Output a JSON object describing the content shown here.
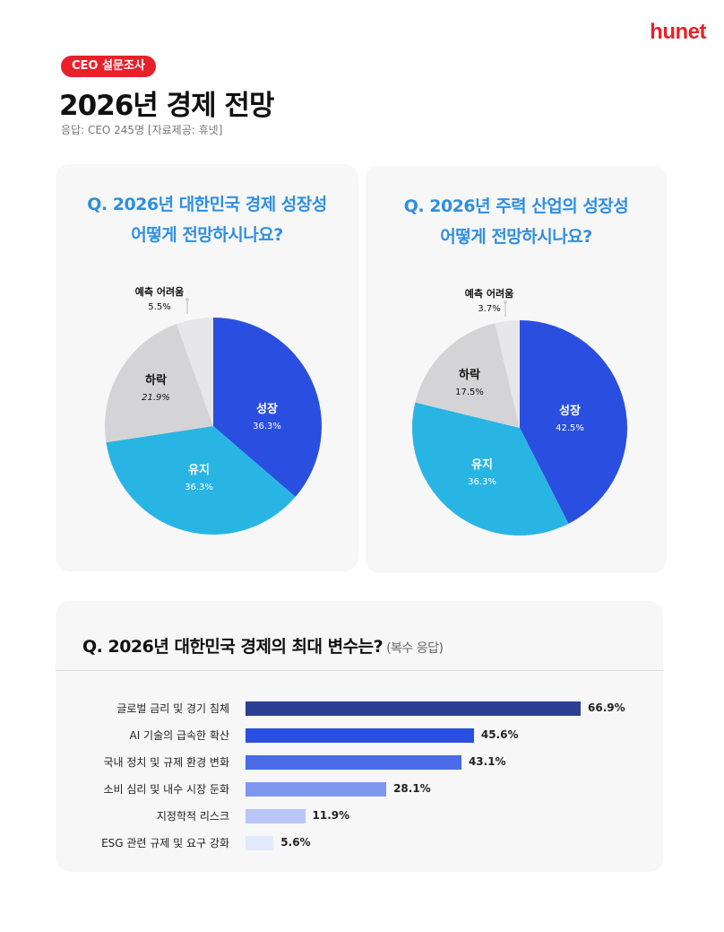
{
  "brand": "hunet",
  "badge": "CEO 설문조사",
  "title": "2026년 경제 전망",
  "meta": "응답: CEO 245명 [자료제공: 휴넷]",
  "colors": {
    "accent_red": "#e8202a",
    "question_blue": "#2f8fe0",
    "growth": "#2a4fe0",
    "maintain": "#29b5e3",
    "decline": "#d4d4d6",
    "unpredictable": "#e7e7e9"
  },
  "chart_data": [
    {
      "type": "pie",
      "title_lines": [
        "Q. 2026년 대한민국 경제 성장성",
        "어떻게 전망하시나요?"
      ],
      "slices": [
        {
          "name": "성장",
          "value": 36.3,
          "label": "36.3%",
          "color": "#2a4fe0"
        },
        {
          "name": "유지",
          "value": 36.3,
          "label": "36.3%",
          "color": "#29b5e3"
        },
        {
          "name": "하락",
          "value": 21.9,
          "label": "21.9%",
          "color": "#d4d4d6"
        },
        {
          "name": "예측 어려움",
          "value": 5.5,
          "label": "5.5%",
          "color": "#e7e7e9"
        }
      ]
    },
    {
      "type": "pie",
      "title_lines": [
        "Q. 2026년 주력 산업의 성장성",
        "어떻게 전망하시나요?"
      ],
      "slices": [
        {
          "name": "성장",
          "value": 42.5,
          "label": "42.5%",
          "color": "#2a4fe0"
        },
        {
          "name": "유지",
          "value": 36.3,
          "label": "36.3%",
          "color": "#29b5e3"
        },
        {
          "name": "하락",
          "value": 17.5,
          "label": "17.5%",
          "color": "#d4d4d6"
        },
        {
          "name": "예측 어려움",
          "value": 3.7,
          "label": "3.7%",
          "color": "#e7e7e9"
        }
      ]
    },
    {
      "type": "bar",
      "orientation": "horizontal",
      "title": "Q. 2026년 대한민국 경제의 최대 변수는?",
      "note": "(복수 응답)",
      "categories": [
        "글로벌 금리 및 경기 침체",
        "AI 기술의 급속한 확산",
        "국내 정치 및 규제 환경 변화",
        "소비 심리 및 내수 시장 둔화",
        "지정학적 리스크",
        "ESG 관련 규제 및 요구 강화"
      ],
      "values": [
        66.9,
        45.6,
        43.1,
        28.1,
        11.9,
        5.6
      ],
      "value_labels": [
        "66.9%",
        "45.6%",
        "43.1%",
        "28.1%",
        "11.9%",
        "5.6%"
      ],
      "colors": [
        "#2d3f94",
        "#2a4fe0",
        "#4a6ae8",
        "#7f97ef",
        "#b9c6f6",
        "#e3e9fb"
      ]
    }
  ]
}
